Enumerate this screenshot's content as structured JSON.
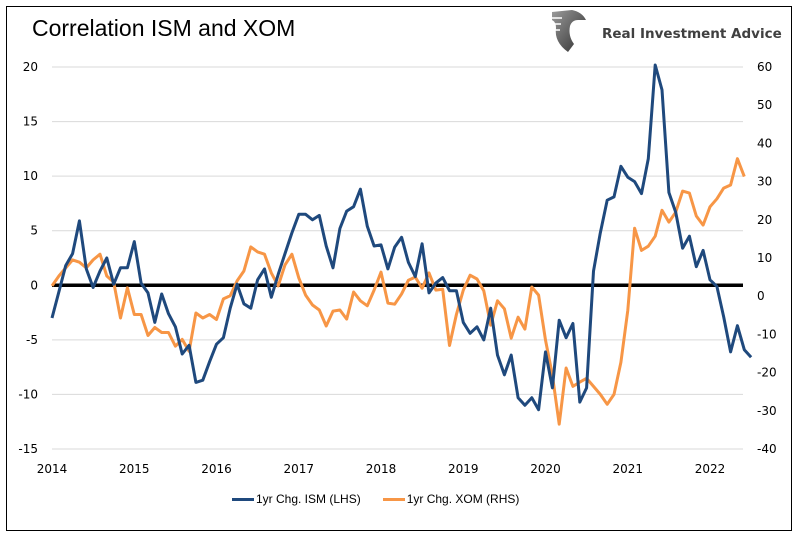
{
  "chart_data": {
    "type": "line",
    "title": "Correlation ISM and XOM",
    "xlabel": "",
    "ylabel_left": "",
    "ylabel_right": "",
    "x_start": "2014-01",
    "x_frequency": "monthly",
    "x_ticks": [
      "2014",
      "2015",
      "2016",
      "2017",
      "2018",
      "2019",
      "2020",
      "2021",
      "2022"
    ],
    "y_left": {
      "range": [
        -15,
        20
      ],
      "ticks": [
        "20",
        "15",
        "10",
        "5",
        "0",
        "-5",
        "-10",
        "-15"
      ]
    },
    "y_right": {
      "range": [
        -40,
        60
      ],
      "ticks": [
        "60",
        "50",
        "40",
        "30",
        "20",
        "10",
        "0",
        "-10",
        "-20",
        "-30",
        "-40"
      ]
    },
    "grid": true,
    "zero_line": "left axis 0, thick black",
    "legend_position": "bottom",
    "series": [
      {
        "name": "1yr Chg. ISM (LHS)",
        "axis": "left",
        "color": "#1f497d",
        "values": [
          -3.0,
          -0.6,
          1.8,
          2.9,
          5.9,
          1.5,
          -0.2,
          1.3,
          2.5,
          0.1,
          1.6,
          1.6,
          4.0,
          0.2,
          -0.7,
          -3.4,
          -0.8,
          -2.6,
          -3.8,
          -6.3,
          -5.5,
          -8.9,
          -8.7,
          -7.0,
          -5.4,
          -4.8,
          -2.1,
          0.1,
          -1.7,
          -2.1,
          0.5,
          1.5,
          -1.1,
          1.0,
          2.9,
          4.8,
          6.5,
          6.5,
          6.0,
          6.4,
          3.6,
          1.6,
          5.2,
          6.8,
          7.2,
          8.8,
          5.4,
          3.6,
          3.7,
          1.5,
          3.5,
          4.4,
          2.1,
          0.8,
          3.8,
          -0.7,
          0.2,
          0.7,
          -0.5,
          -0.5,
          -3.4,
          -4.4,
          -3.8,
          -5.0,
          -2.1,
          -6.4,
          -8.2,
          -6.4,
          -10.3,
          -11.0,
          -10.3,
          -11.4,
          -6.1,
          -9.4,
          -3.2,
          -4.8,
          -3.5,
          -10.7,
          -9.4,
          1.3,
          4.8,
          7.8,
          8.1,
          10.9,
          9.9,
          9.5,
          8.4,
          11.6,
          20.1,
          17.9,
          8.5,
          6.7,
          3.4,
          4.5,
          1.7,
          3.2,
          0.5,
          -0.1,
          -2.9,
          -6.1,
          -3.7,
          -5.9,
          -6.6
        ]
      },
      {
        "name": "1yr Chg. XOM (RHS)",
        "axis": "right",
        "color": "#f79646",
        "values": [
          2.7,
          5.3,
          7.4,
          9.5,
          8.9,
          7.4,
          9.5,
          11.0,
          5.3,
          3.7,
          -5.7,
          2.2,
          -4.8,
          -4.8,
          -10.3,
          -8.2,
          -9.5,
          -9.5,
          -13.1,
          -11.3,
          -14.4,
          -4.4,
          -5.7,
          -4.8,
          -6.1,
          -0.7,
          0.1,
          4.0,
          6.6,
          12.9,
          11.6,
          11.0,
          6.1,
          2.7,
          8.2,
          11.0,
          4.8,
          0.3,
          -2.3,
          -3.6,
          -7.8,
          -3.9,
          -3.6,
          -6.0,
          1.1,
          -1.2,
          -2.5,
          1.6,
          6.3,
          -1.8,
          -2.1,
          0.6,
          4.2,
          5.0,
          2.1,
          6.1,
          1.6,
          1.8,
          -12.9,
          -4.8,
          1.6,
          5.5,
          4.5,
          1.4,
          -7.6,
          -1.2,
          -3.3,
          -11.0,
          -5.5,
          -8.6,
          2.4,
          0.3,
          -11.5,
          -20.7,
          -33.5,
          -18.8,
          -23.6,
          -22.5,
          -21.5,
          -23.6,
          -25.7,
          -28.3,
          -25.7,
          -17.3,
          -3.7,
          17.8,
          12.0,
          13.1,
          15.7,
          22.5,
          19.4,
          22.0,
          27.5,
          27.0,
          21.0,
          18.6,
          23.4,
          25.5,
          28.3,
          29.1,
          36.0,
          31.3
        ]
      }
    ]
  },
  "branding": {
    "logo_icon": "eagle-icon",
    "logo_text": "Real Investment Advice"
  },
  "legend": {
    "items": [
      {
        "label": "1yr Chg. ISM (LHS)",
        "color": "#1f497d"
      },
      {
        "label": "1yr Chg. XOM (RHS)",
        "color": "#f79646"
      }
    ]
  }
}
